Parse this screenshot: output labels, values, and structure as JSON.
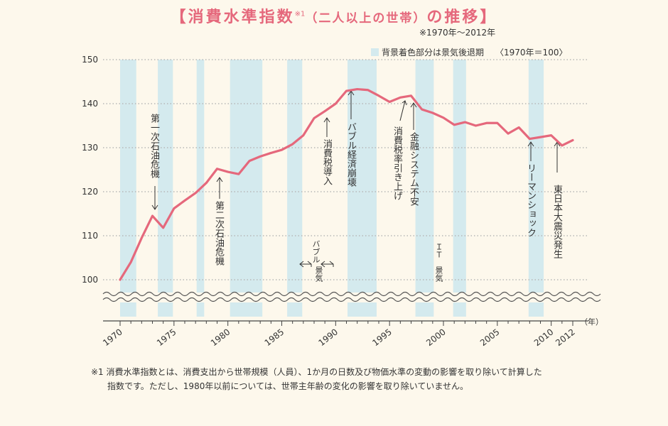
{
  "title": {
    "main": "【消費水準指数",
    "note_mark": "※1",
    "paren": "（二人以上の世帯）",
    "tail": "の推移】"
  },
  "period": "※1970年～2012年",
  "legend": {
    "shading": "背景着色部分は景気後退期",
    "base": "〈1970年＝100〉"
  },
  "chart_data": {
    "type": "line",
    "x": [
      1970,
      1971,
      1972,
      1973,
      1974,
      1975,
      1976,
      1977,
      1978,
      1979,
      1980,
      1981,
      1982,
      1983,
      1984,
      1985,
      1986,
      1987,
      1988,
      1989,
      1990,
      1991,
      1992,
      1993,
      1994,
      1995,
      1996,
      1997,
      1998,
      1999,
      2000,
      2001,
      2002,
      2003,
      2004,
      2005,
      2006,
      2007,
      2008,
      2009,
      2010,
      2011,
      2012
    ],
    "values": [
      100.0,
      104.0,
      109.5,
      114.5,
      111.8,
      116.2,
      118.0,
      119.7,
      122.0,
      125.2,
      124.5,
      124.0,
      127.0,
      128.0,
      128.8,
      129.5,
      130.8,
      132.8,
      136.7,
      138.3,
      140.0,
      142.9,
      143.3,
      143.1,
      141.8,
      140.4,
      141.4,
      141.8,
      138.7,
      137.9,
      136.8,
      135.2,
      135.8,
      135.0,
      135.6,
      135.6,
      133.2,
      134.6,
      132.0,
      132.4,
      132.8,
      130.5,
      131.7
    ],
    "ylim": [
      100,
      150
    ],
    "yticks": [
      "100",
      "110",
      "120",
      "130",
      "140",
      "150"
    ],
    "xticks": [
      "1970",
      "1975",
      "1980",
      "1985",
      "1990",
      "1995",
      "2000",
      "2005",
      "2010",
      "2012"
    ],
    "xunit": "（年）",
    "recessions": [
      [
        1970.0,
        1971.5
      ],
      [
        1973.5,
        1974.9
      ],
      [
        1977.1,
        1977.8
      ],
      [
        1980.2,
        1983.2
      ],
      [
        1985.5,
        1986.9
      ],
      [
        1991.1,
        1993.8
      ],
      [
        1997.4,
        1999.1
      ],
      [
        2000.9,
        2002.1
      ],
      [
        2007.9,
        2009.3
      ]
    ],
    "colors": {
      "line": "#e5687c",
      "shade": "#d4eaee",
      "grid": "#b7b7b7",
      "axis": "#444444"
    }
  },
  "annotations": {
    "oil1": "第一次石油危機",
    "oil2": "第二次石油危機",
    "tax_intro": "消費税導入",
    "bubble_burst": "バブル経済崩壊",
    "tax_up": "消費税率引き上げ",
    "finance": "金融システム不安",
    "lehman": "リーマンショック",
    "quake": "東日本大震災発生",
    "bubble_boom_top": "バブル",
    "bubble_boom_bottom": "景気",
    "it_boom_top": "ＩＴ",
    "it_boom_bottom": "景気"
  },
  "footnote": {
    "line1": "※1 消費水準指数とは、消費支出から世帯規模（人員）、1か月の日数及び物価水準の変動の影響を取り除いて計算した",
    "line2": "指数です。ただし、1980年以前については、世帯主年齢の変化の影響を取り除いていません。"
  }
}
